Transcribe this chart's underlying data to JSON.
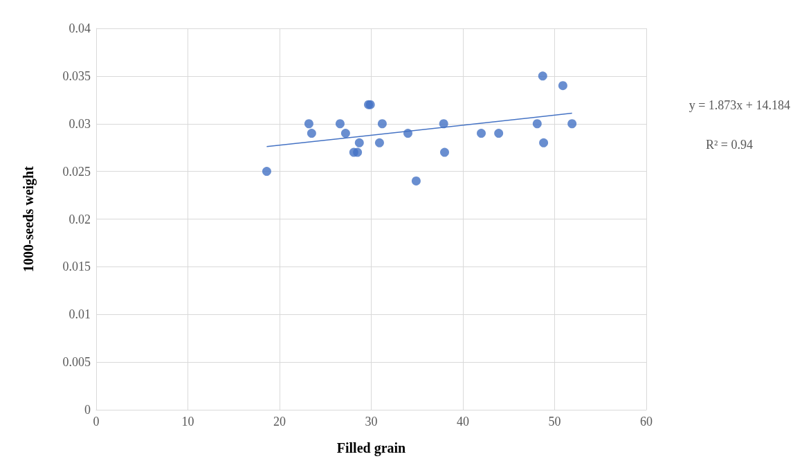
{
  "chart_data": {
    "type": "scatter",
    "xlabel": "Filled grain",
    "ylabel": "1000-seeds weight",
    "annotations": [
      "y = 1.873x + 14.184",
      "R² = 0.94"
    ],
    "xlim": [
      0,
      60
    ],
    "xticks": [
      0,
      10,
      20,
      30,
      40,
      50,
      60
    ],
    "ylim": [
      0,
      0.04
    ],
    "yticks": [
      0,
      0.005,
      0.01,
      0.015,
      0.02,
      0.025,
      0.03,
      0.035,
      0.04
    ],
    "grid": true,
    "series": [
      {
        "marker": "circle",
        "color": "#4472c4",
        "x": [
          23.2,
          23.5,
          18.6,
          26.6,
          27.2,
          28.1,
          28.5,
          28.7,
          29.7,
          29.9,
          31.2,
          30.9,
          34.0,
          34.9,
          37.9,
          38.0,
          42.0,
          43.9,
          48.1,
          48.7,
          48.8,
          50.9,
          51.9
        ],
        "values": [
          0.03,
          0.029,
          0.025,
          0.03,
          0.029,
          0.027,
          0.027,
          0.028,
          0.032,
          0.032,
          0.03,
          0.028,
          0.029,
          0.024,
          0.03,
          0.027,
          0.029,
          0.029,
          0.03,
          0.035,
          0.028,
          0.034,
          0.03
        ]
      },
      {
        "type": "line",
        "marker": "none",
        "color": "#4472c4",
        "line_style": "solid",
        "x": [
          18.6,
          51.9
        ],
        "values": [
          0.0276,
          0.0311
        ]
      }
    ]
  }
}
